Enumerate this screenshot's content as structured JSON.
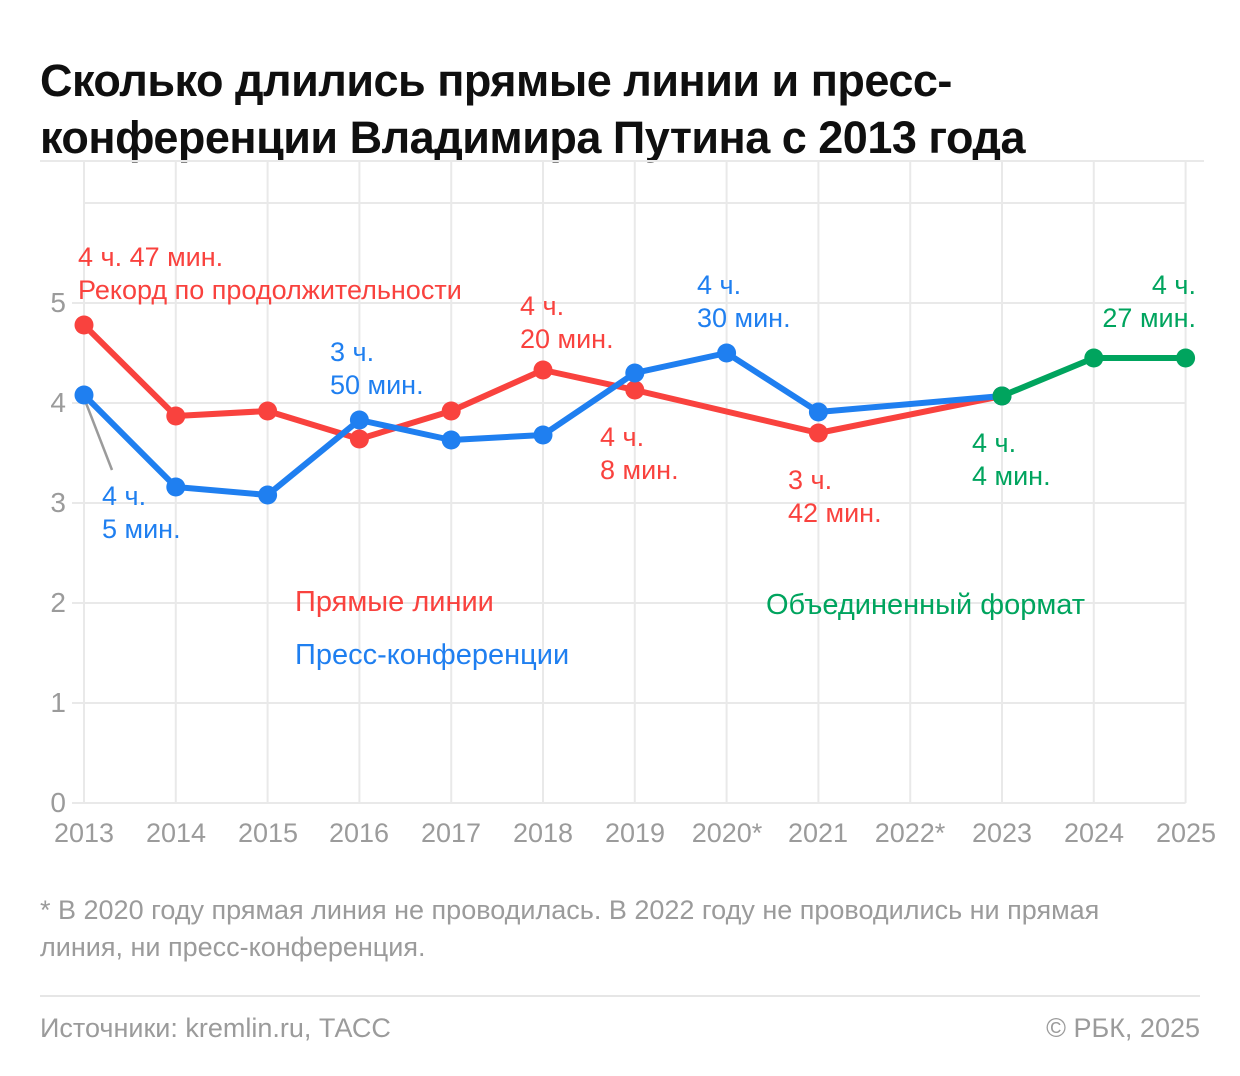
{
  "title": "Сколько длились прямые линии и пресс-конференции Владимира Путина с 2013 года",
  "chart_data": {
    "type": "line",
    "title": "Сколько длились прямые линии и пресс-конференции Владимира Путина с 2013 года",
    "unit": "hours",
    "x_labels": [
      "2013",
      "2014",
      "2015",
      "2016",
      "2017",
      "2018",
      "2019",
      "2020*",
      "2021",
      "2022*",
      "2023",
      "2024",
      "2025"
    ],
    "y_tick_labels": [
      "0",
      "1",
      "2",
      "3",
      "4",
      "5"
    ],
    "ylim": [
      0,
      6.4
    ],
    "grid": true,
    "legend_position": "inside-plot-text-labels",
    "series": [
      {
        "name": "Прямые линии",
        "color": "#f9423e",
        "points": [
          {
            "year": 2013,
            "hours": 4.78,
            "label": "4 ч. 47 мин."
          },
          {
            "year": 2014,
            "hours": 3.87
          },
          {
            "year": 2015,
            "hours": 3.92
          },
          {
            "year": 2016,
            "hours": 3.64
          },
          {
            "year": 2017,
            "hours": 3.92
          },
          {
            "year": 2018,
            "hours": 4.33,
            "label": "4 ч. 20 мин."
          },
          {
            "year": 2019,
            "hours": 4.13,
            "label": "4 ч. 8 мин."
          },
          {
            "year": 2021,
            "hours": 3.7,
            "label": "3 ч. 42 мин."
          },
          {
            "year": 2023,
            "hours": 4.07
          }
        ]
      },
      {
        "name": "Пресс-конференции",
        "color": "#1f7ff0",
        "points": [
          {
            "year": 2013,
            "hours": 4.08,
            "label": "4 ч. 5 мин."
          },
          {
            "year": 2014,
            "hours": 3.16
          },
          {
            "year": 2015,
            "hours": 3.08
          },
          {
            "year": 2016,
            "hours": 3.83,
            "label": "3 ч. 50 мин."
          },
          {
            "year": 2017,
            "hours": 3.63
          },
          {
            "year": 2018,
            "hours": 3.68
          },
          {
            "year": 2019,
            "hours": 4.3
          },
          {
            "year": 2020,
            "hours": 4.5,
            "label": "4 ч. 30 мин."
          },
          {
            "year": 2021,
            "hours": 3.91
          },
          {
            "year": 2023,
            "hours": 4.07
          }
        ]
      },
      {
        "name": "Объединенный формат",
        "color": "#00a45e",
        "points": [
          {
            "year": 2023,
            "hours": 4.07,
            "label": "4 ч. 4 мин."
          },
          {
            "year": 2024,
            "hours": 4.45
          },
          {
            "year": 2025,
            "hours": 4.45,
            "label": "4 ч. 27 мин."
          }
        ]
      }
    ]
  },
  "annotations": {
    "record": {
      "line1": "4 ч. 47 мин.",
      "line2": "Рекорд по продолжительности"
    },
    "pc2013": {
      "line1": "4 ч.",
      "line2": "5 мин."
    },
    "pc2016": {
      "line1": "3 ч.",
      "line2": "50 мин."
    },
    "dl2018": {
      "line1": "4 ч.",
      "line2": "20 мин."
    },
    "dl2019": {
      "line1": "4 ч.",
      "line2": "8 мин."
    },
    "pc2020": {
      "line1": "4 ч.",
      "line2": "30 мин."
    },
    "dl2021": {
      "line1": "3 ч.",
      "line2": "42 мин."
    },
    "un2023": {
      "line1": "4 ч.",
      "line2": "4 мин."
    },
    "un2025": {
      "line1": "4 ч.",
      "line2": "27 мин."
    }
  },
  "legend": {
    "direct_lines": "Прямые линии",
    "press_conferences": "Пресс-конференции",
    "unified_format": "Объединенный формат"
  },
  "footnote_lines": [
    "* В 2020 году прямая линия не проводилась. В 2022 году не проводились ни прямая",
    "линия, ни пресс-конференция."
  ],
  "footer": {
    "sources": "Источники: kremlin.ru, ТАСС",
    "copyright": "© РБК, 2025"
  },
  "colors": {
    "direct_lines": "#f9423e",
    "press_conferences": "#1f7ff0",
    "unified_format": "#00a45e",
    "axis_text": "#9b9b9b",
    "grid": "#e9e9e9",
    "leader_line": "#9b9b9b",
    "title_text": "#0f0f0f"
  }
}
